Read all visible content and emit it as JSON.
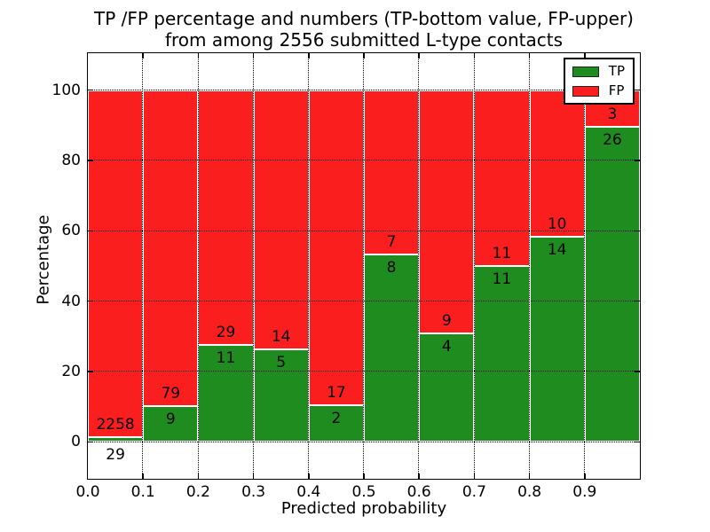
{
  "chart_data": {
    "type": "bar",
    "stacked": true,
    "title_line1": "TP /FP percentage and numbers (TP-bottom value, FP-upper)",
    "title_line2": "from among 2556 submitted L-type contacts",
    "xlabel": "Predicted probability",
    "ylabel": "Percentage",
    "total_submitted_contacts": 2556,
    "bins": [
      "0.0-0.1",
      "0.1-0.2",
      "0.2-0.3",
      "0.3-0.4",
      "0.4-0.5",
      "0.5-0.6",
      "0.6-0.7",
      "0.7-0.8",
      "0.8-0.9",
      "0.9-1.0"
    ],
    "x_tick_labels": [
      "0.0",
      "0.1",
      "0.2",
      "0.3",
      "0.4",
      "0.5",
      "0.6",
      "0.7",
      "0.8",
      "0.9"
    ],
    "y_ticks": [
      0,
      20,
      40,
      60,
      80,
      100
    ],
    "y_tick_labels": [
      "0",
      "20",
      "40",
      "60",
      "80",
      "100"
    ],
    "xlim": [
      0.0,
      1.0
    ],
    "ylim": [
      -10.5,
      110.5
    ],
    "grid": {
      "style": "dotted",
      "color": "#000000",
      "on_top_of_bars": true
    },
    "bar_edge_color": "#ffffff",
    "series": [
      {
        "name": "TP",
        "color": "#1f8c1f",
        "counts": [
          29,
          9,
          11,
          5,
          2,
          8,
          4,
          11,
          14,
          26
        ]
      },
      {
        "name": "FP",
        "color": "#fa1e1e",
        "counts": [
          2258,
          79,
          29,
          14,
          17,
          7,
          9,
          11,
          10,
          3
        ]
      }
    ],
    "tp_percent": [
      1.27,
      10.23,
      27.5,
      26.32,
      10.53,
      53.33,
      30.77,
      50.0,
      58.33,
      89.66
    ],
    "legend": {
      "position": "upper right",
      "items": [
        {
          "label": "TP",
          "color": "#1f8c1f"
        },
        {
          "label": "FP",
          "color": "#fa1e1e"
        }
      ]
    }
  }
}
